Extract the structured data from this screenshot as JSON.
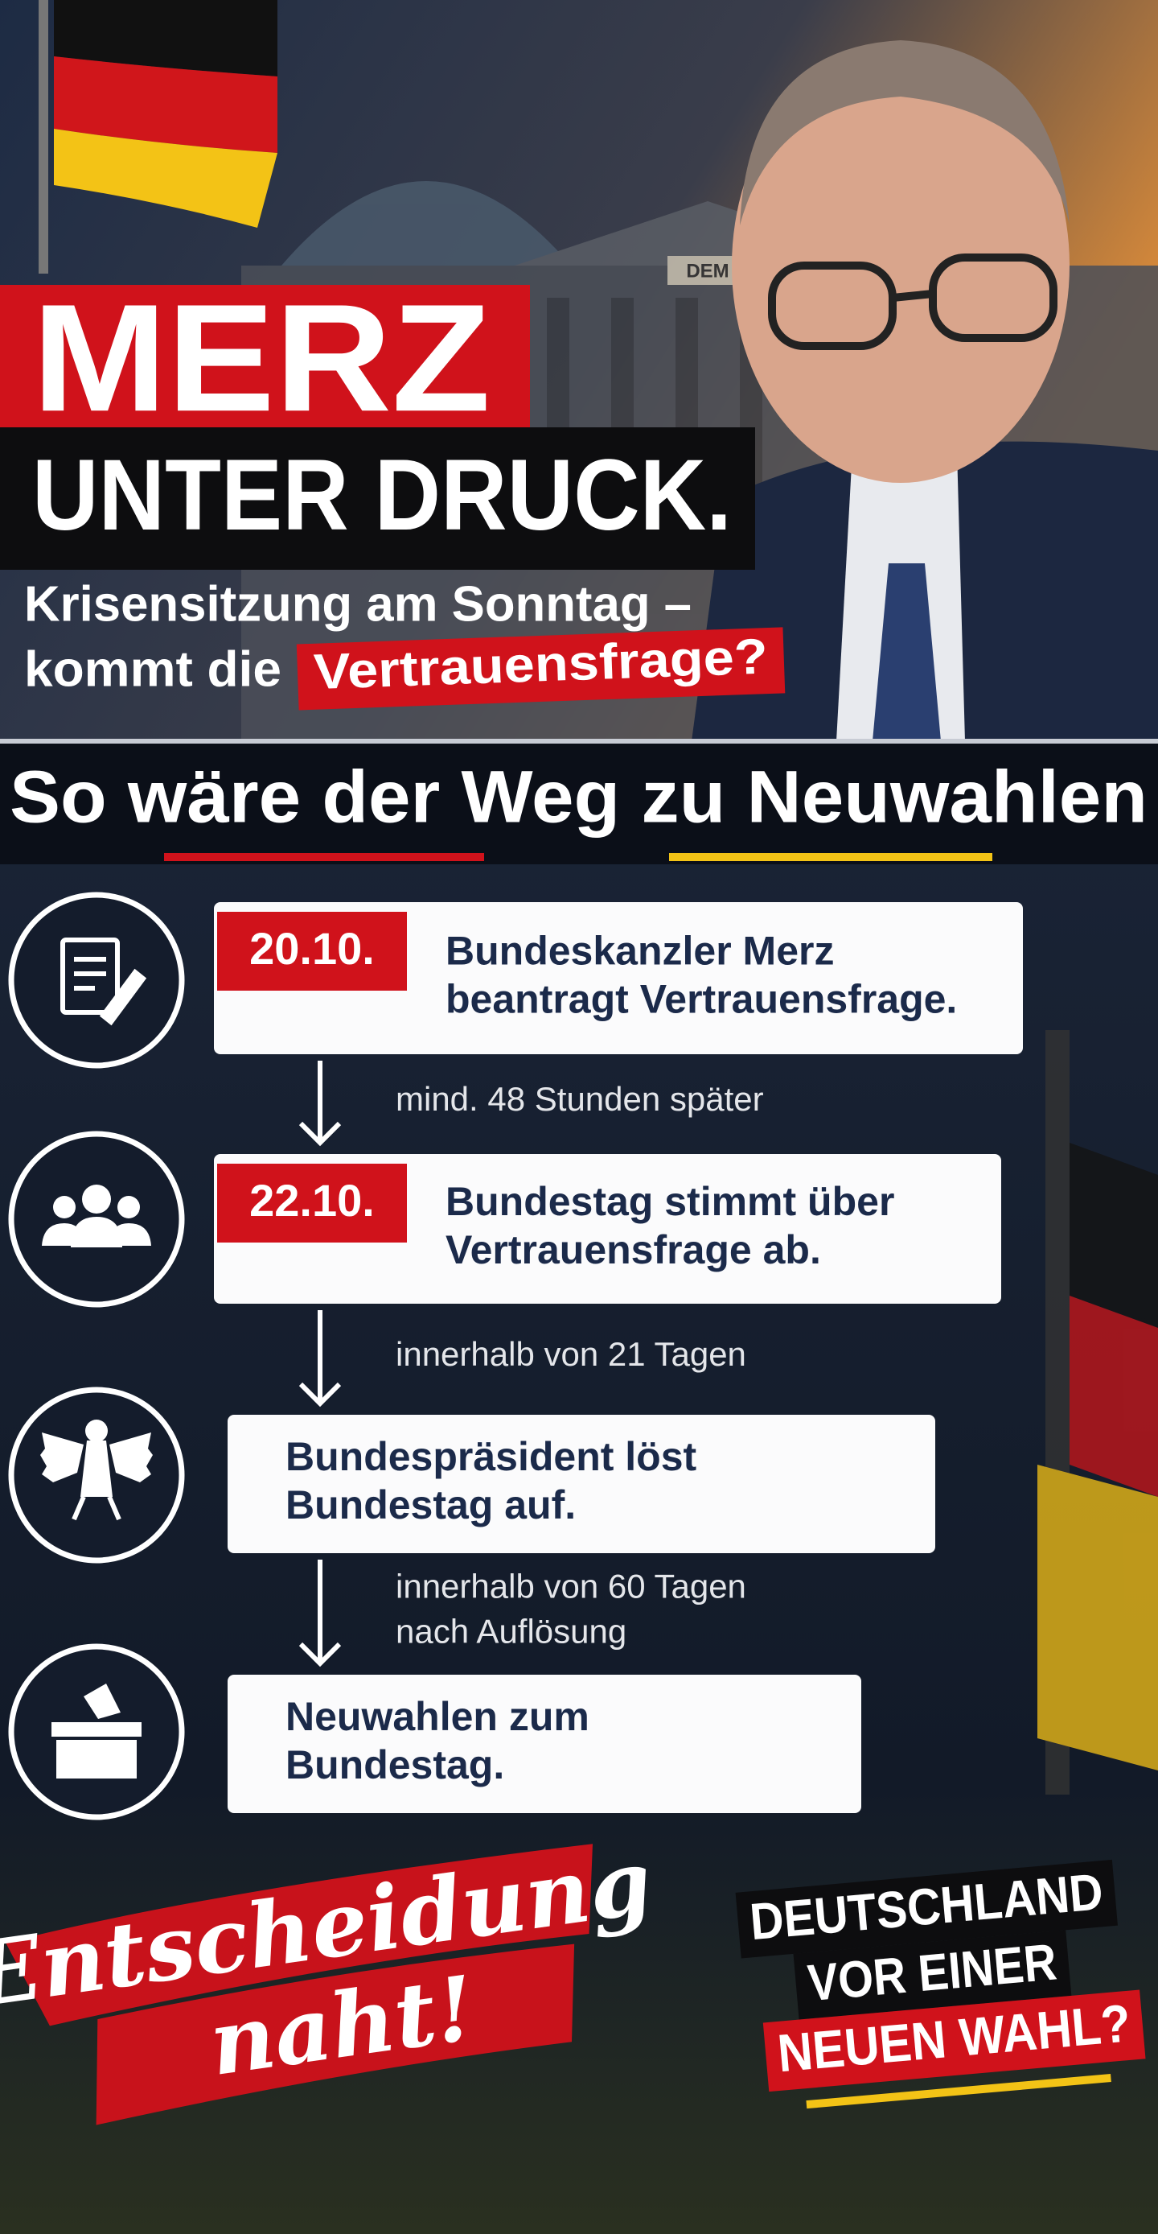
{
  "hero": {
    "title": "MERZ",
    "title_line2": "UNTER DRUCK.",
    "building_sign": "DEM",
    "subtitle_line1": "Krisensitzung am Sonntag –",
    "subtitle_line2": "kommt die",
    "subtitle_highlight": "Vertrauensfrage?"
  },
  "timeline": {
    "title": "So wäre der Weg zu Neuwahlen",
    "steps": [
      {
        "date": "20.10.",
        "text": [
          "Bundeskanzler Merz",
          "beantragt Vertrauensfrage."
        ]
      },
      {
        "date": "22.10.",
        "text": [
          "Bundestag stimmt über",
          "Vertrauensfrage ab."
        ]
      },
      {
        "text": [
          "Bundespräsident löst",
          "Bundestag auf."
        ]
      },
      {
        "text": [
          "Neuwahlen zum",
          "Bundestag."
        ]
      }
    ],
    "connectors": [
      [
        "mind. 48 Stunden später"
      ],
      [
        "innerhalb von 21 Tagen"
      ],
      [
        "innerhalb von 60 Tagen",
        "nach Auflösung"
      ]
    ]
  },
  "footer": {
    "slogan": [
      "Entscheidung",
      "naht!"
    ],
    "question": [
      "DEUTSCHLAND",
      "VOR EINER"
    ],
    "question_highlight": "NEUEN WAHL?"
  }
}
